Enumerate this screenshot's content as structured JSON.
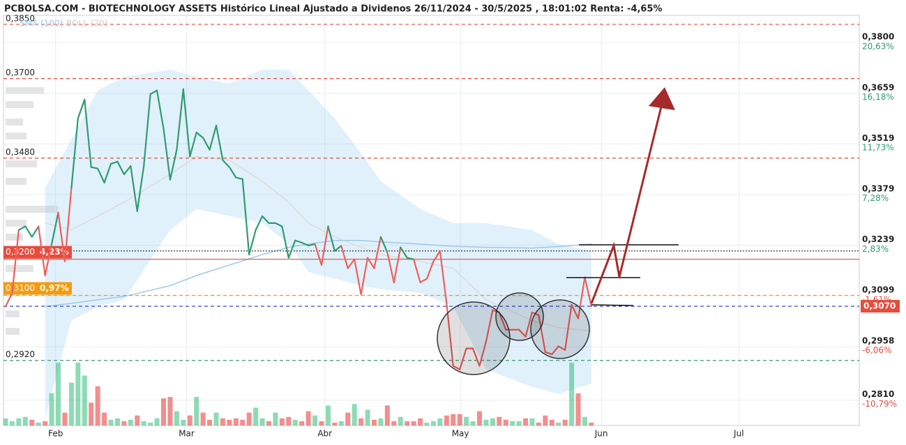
{
  "chart_data": {
    "type": "line",
    "title": "PCBOLSA.COM - BIOTECHNOLOGY ASSETS Histórico Lineal Ajustado a Dividenos 26/11/2024 - 30/5/2025 , 18:01:02 Renta: -4,65%",
    "indicators": [
      "SMA (100)",
      "BOLL (20)"
    ],
    "xlim": [
      -0.32,
      129.7
    ],
    "xticks": [
      {
        "value": 7.6,
        "label": "Feb"
      },
      {
        "value": 27.5,
        "label": "Mar"
      },
      {
        "value": 48.5,
        "label": "Abr"
      },
      {
        "value": 69.1,
        "label": "May"
      },
      {
        "value": 90.5,
        "label": "Jun"
      },
      {
        "value": 111.4,
        "label": "Jul"
      }
    ],
    "ylim": [
      0.274,
      0.3875
    ],
    "y2lim": [
      -13.02,
      23.01
    ],
    "yticks": [
      {
        "value": 0.38,
        "label": "0,3800"
      },
      {
        "value": 0.3659,
        "label": "0,3659"
      },
      {
        "value": 0.3519,
        "label": "0,3519"
      },
      {
        "value": 0.3379,
        "label": "0,3379"
      },
      {
        "value": 0.3239,
        "label": "0,3239"
      },
      {
        "value": 0.3099,
        "label": "0,3099"
      },
      {
        "value": 0.2958,
        "label": "0,2958"
      },
      {
        "value": 0.281,
        "label": "0,2810"
      }
    ],
    "y2ticks": [
      {
        "value": 20.63,
        "label": "20,63%"
      },
      {
        "value": 16.18,
        "label": "16,18%"
      },
      {
        "value": 11.73,
        "label": "11,73%"
      },
      {
        "value": 7.28,
        "label": "7,28%"
      },
      {
        "value": 2.83,
        "label": "2,83%"
      },
      {
        "value": -1.61,
        "label": "-1,61%"
      },
      {
        "value": -6.06,
        "label": "-6,06%"
      },
      {
        "value": -10.79,
        "label": "-10,79%"
      }
    ],
    "grid": true,
    "series": [
      {
        "color": "#2e9c6e",
        "color_below": "#ee5f5b",
        "threshold": 0.32,
        "values": [
          0.3069,
          0.3107,
          0.3281,
          0.3291,
          0.3262,
          0.3291,
          0.3155,
          0.3242,
          0.3329,
          0.3194,
          0.3397,
          0.359,
          0.3642,
          0.3455,
          0.3451,
          0.3412,
          0.3464,
          0.347,
          0.3435,
          0.3458,
          0.3333,
          0.3458,
          0.3657,
          0.3667,
          0.3561,
          0.342,
          0.3503,
          0.3671,
          0.3484,
          0.3551,
          0.3536,
          0.3503,
          0.357,
          0.3474,
          0.3455,
          0.3426,
          0.3422,
          0.3213,
          0.3281,
          0.3319,
          0.33,
          0.33,
          0.3291,
          0.3204,
          0.3252,
          0.3246,
          0.3238,
          0.3242,
          0.3184,
          0.3291,
          0.3223,
          0.3237,
          0.3175,
          0.32,
          0.3103,
          0.3204,
          0.3175,
          0.3262,
          0.3219,
          0.3136,
          0.3233,
          0.3204,
          0.32,
          0.3136,
          0.3146,
          0.3194,
          0.3223,
          0.3078,
          0.2905,
          0.2895,
          0.2953,
          0.2953,
          0.2905,
          0.2972,
          0.3059,
          0.3053,
          0.3005,
          0.3005,
          0.3005,
          0.2986,
          0.3053,
          0.3045,
          0.2943,
          0.2937,
          0.2959,
          0.2949,
          0.3074,
          0.3036,
          0.315,
          0.307
        ]
      }
    ],
    "volume": [
      10,
      6,
      10,
      12,
      8,
      4,
      6,
      45,
      88,
      18,
      60,
      88,
      70,
      32,
      55,
      18,
      8,
      10,
      6,
      8,
      14,
      6,
      4,
      10,
      38,
      40,
      20,
      8,
      14,
      40,
      18,
      8,
      18,
      10,
      8,
      10,
      8,
      18,
      25,
      10,
      6,
      18,
      10,
      12,
      8,
      6,
      20,
      14,
      6,
      28,
      4,
      6,
      18,
      30,
      10,
      22,
      8,
      10,
      28,
      6,
      12,
      6,
      6,
      10,
      4,
      6,
      10,
      14,
      16,
      16,
      12,
      6,
      20,
      8,
      10,
      12,
      8,
      6,
      6,
      10,
      10,
      4,
      14,
      8,
      4,
      8,
      88,
      45,
      12,
      4
    ],
    "bands": {
      "x": [
        6,
        10,
        14,
        18,
        25,
        29,
        34,
        39,
        43,
        46,
        50,
        54,
        57,
        63,
        68,
        73,
        80,
        84,
        89
      ],
      "upper": [
        0.3397,
        0.3532,
        0.3667,
        0.3705,
        0.3725,
        0.3705,
        0.3686,
        0.3725,
        0.3725,
        0.3667,
        0.359,
        0.3493,
        0.3416,
        0.3339,
        0.33,
        0.33,
        0.3281,
        0.3242,
        0.3223
      ],
      "lower": [
        0.276,
        0.303,
        0.3069,
        0.3088,
        0.3281,
        0.3339,
        0.332,
        0.33,
        0.3242,
        0.3165,
        0.3146,
        0.3127,
        0.3117,
        0.3107,
        0.3069,
        0.2895,
        0.2847,
        0.2827,
        0.2856
      ],
      "middle": [
        0.33,
        0.3281,
        0.3319,
        0.3358,
        0.3435,
        0.3484,
        0.3474,
        0.3416,
        0.3358,
        0.33,
        0.3262,
        0.3233,
        0.3213,
        0.3194,
        0.3175,
        0.3088,
        0.303,
        0.3011,
        0.3001
      ],
      "sma": [
        0.3069,
        0.3078,
        0.3088,
        0.3097,
        0.3127,
        0.3155,
        0.3184,
        0.3213,
        0.3233,
        0.3242,
        0.3252,
        0.3252,
        0.3248,
        0.3242,
        0.3236,
        0.3233,
        0.3231,
        0.3235,
        0.3242
      ]
    },
    "levels": [
      {
        "value": 0.385,
        "label": "0,3850",
        "color": "#e74c3c",
        "style": "dashed"
      },
      {
        "value": 0.37,
        "label": "0,3700",
        "color": "#e74c3c",
        "style": "dashed"
      },
      {
        "value": 0.348,
        "label": "0,3480",
        "color": "#e74c3c",
        "style": "dashed"
      },
      {
        "value": 0.3223,
        "color": "#333333",
        "style": "dotted"
      },
      {
        "value": 0.32,
        "label": "0,3200",
        "pct": "4,23%",
        "color": "#e74c3c",
        "style": "solid",
        "boxed": true
      },
      {
        "value": 0.31,
        "label": "0,3100",
        "pct": "0,97%",
        "color": "#f39c12",
        "style": "dashed",
        "boxed": true
      },
      {
        "value": 0.307,
        "label": "0,3070",
        "color": "#2233cc",
        "style": "dashed",
        "last": true
      },
      {
        "value": 0.292,
        "label": "0,2920",
        "color": "#3a9a6e",
        "style": "dashed"
      }
    ]
  }
}
